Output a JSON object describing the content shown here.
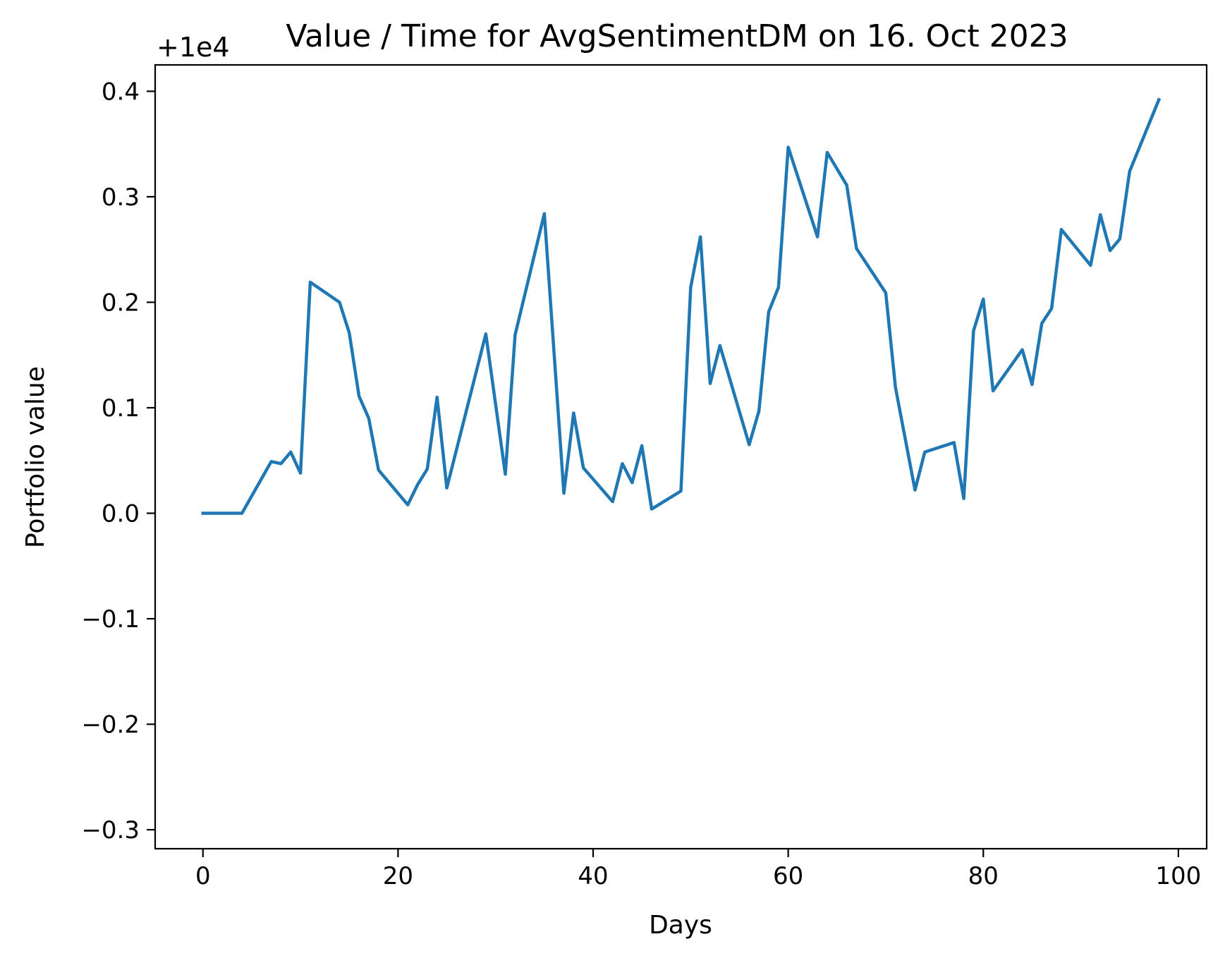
{
  "chart_data": {
    "type": "line",
    "title": "Value / Time for AvgSentimentDM on 16. Oct 2023",
    "xlabel": "Days",
    "ylabel": "Portfolio value",
    "offset_label": "+1e4",
    "offset": 10000,
    "xlim": [
      -4.9,
      102.9
    ],
    "ylim": [
      -0.318,
      0.425
    ],
    "xticks": [
      0,
      20,
      40,
      60,
      80,
      100
    ],
    "xtick_labels": [
      "0",
      "20",
      "40",
      "60",
      "80",
      "100"
    ],
    "yticks": [
      0.4,
      0.3,
      0.2,
      0.1,
      0.0,
      -0.1,
      -0.2,
      -0.3
    ],
    "ytick_labels": [
      "0.4",
      "0.3",
      "0.2",
      "0.1",
      "0.0",
      "−0.1",
      "−0.2",
      "−0.3"
    ],
    "grid": false,
    "line_color": "#1f77b4",
    "series": [
      {
        "x": [
          0,
          4,
          7,
          8,
          9,
          10,
          11,
          14,
          15,
          16,
          17,
          18,
          21,
          22,
          23,
          24,
          25,
          29,
          31,
          32,
          35,
          37,
          38,
          39,
          42,
          43,
          44,
          45,
          46,
          49,
          50,
          51,
          52,
          53,
          56,
          57,
          58,
          59,
          60,
          63,
          64,
          66,
          67,
          70,
          71,
          73,
          74,
          77,
          78,
          79,
          80,
          81,
          84,
          85,
          86,
          87,
          88,
          91,
          92,
          93,
          94,
          95,
          98
        ],
        "values": [
          10000.0,
          10000.0,
          10000.049,
          10000.047,
          10000.058,
          10000.038,
          10000.219,
          10000.2,
          10000.171,
          10000.111,
          10000.09,
          10000.041,
          10000.008,
          10000.027,
          10000.042,
          10000.11,
          10000.024,
          10000.17,
          10000.037,
          10000.169,
          10000.284,
          10000.019,
          10000.095,
          10000.043,
          10000.011,
          10000.047,
          10000.029,
          10000.064,
          10000.004,
          10000.021,
          10000.214,
          10000.262,
          10000.123,
          10000.159,
          10000.065,
          10000.097,
          10000.191,
          10000.214,
          10000.347,
          10000.262,
          10000.342,
          10000.311,
          10000.251,
          10000.209,
          10000.119,
          10000.022,
          10000.058,
          10000.067,
          10000.014,
          10000.173,
          10000.203,
          10000.116,
          10000.155,
          10000.122,
          10000.18,
          10000.194,
          10000.269,
          10000.235,
          10000.283,
          10000.249,
          10000.26,
          10000.324,
          10000.392
        ]
      }
    ]
  }
}
